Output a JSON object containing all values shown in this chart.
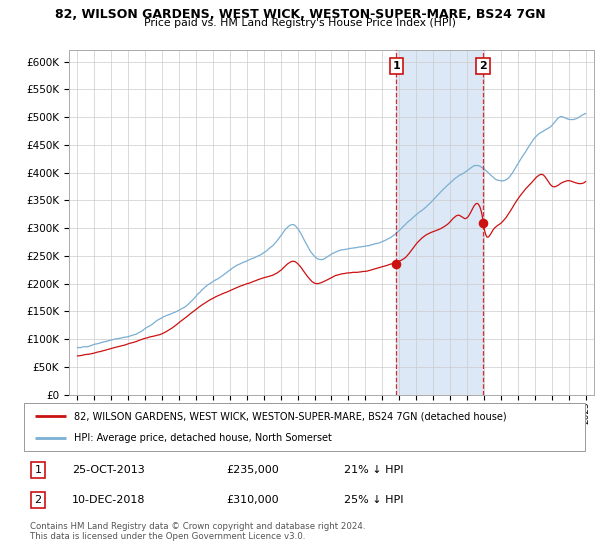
{
  "title": "82, WILSON GARDENS, WEST WICK, WESTON-SUPER-MARE, BS24 7GN",
  "subtitle": "Price paid vs. HM Land Registry's House Price Index (HPI)",
  "hpi_color": "#7bafd4",
  "price_color": "#cc1111",
  "plot_bg": "#ffffff",
  "fig_bg": "#ffffff",
  "grid_color": "#cccccc",
  "shaded_color": "#dce8f5",
  "ylim": [
    0,
    620000
  ],
  "yticks": [
    0,
    50000,
    100000,
    150000,
    200000,
    250000,
    300000,
    350000,
    400000,
    450000,
    500000,
    550000,
    600000
  ],
  "xlim": [
    1994.5,
    2025.5
  ],
  "x_start_year": 1995,
  "x_end_year": 2025,
  "transaction1": {
    "date": "25-OCT-2013",
    "price": 235000,
    "label": "1",
    "x_year": 2013.82
  },
  "transaction2": {
    "date": "10-DEC-2018",
    "price": 310000,
    "label": "2",
    "x_year": 2018.95
  },
  "shaded_region": [
    2013.82,
    2018.95
  ],
  "legend_line1": "82, WILSON GARDENS, WEST WICK, WESTON-SUPER-MARE, BS24 7GN (detached house)",
  "legend_line2": "HPI: Average price, detached house, North Somerset",
  "table_row1": [
    "1",
    "25-OCT-2013",
    "£235,000",
    "21% ↓ HPI"
  ],
  "table_row2": [
    "2",
    "10-DEC-2018",
    "£310,000",
    "25% ↓ HPI"
  ],
  "footnote": "Contains HM Land Registry data © Crown copyright and database right 2024.\nThis data is licensed under the Open Government Licence v3.0.",
  "hpi_keypoints_x": [
    1995.0,
    1996.0,
    1997.0,
    1998.5,
    2000.0,
    2001.5,
    2002.5,
    2003.5,
    2004.5,
    2005.5,
    2006.5,
    2007.0,
    2007.8,
    2008.5,
    2009.0,
    2009.5,
    2010.0,
    2010.5,
    2011.0,
    2012.0,
    2013.0,
    2013.82,
    2014.5,
    2015.5,
    2016.5,
    2017.5,
    2018.0,
    2018.5,
    2018.95,
    2019.5,
    2020.0,
    2020.5,
    2021.0,
    2021.5,
    2022.0,
    2022.5,
    2023.0,
    2023.5,
    2024.0,
    2024.5,
    2025.0
  ],
  "hpi_keypoints_y": [
    85000,
    90000,
    98000,
    110000,
    140000,
    165000,
    195000,
    215000,
    235000,
    248000,
    268000,
    288000,
    308000,
    275000,
    252000,
    248000,
    258000,
    265000,
    268000,
    272000,
    280000,
    295000,
    315000,
    340000,
    370000,
    395000,
    405000,
    415000,
    410000,
    395000,
    388000,
    395000,
    420000,
    445000,
    468000,
    480000,
    490000,
    505000,
    500000,
    502000,
    510000
  ],
  "price_keypoints_x": [
    1995.0,
    1996.0,
    1997.0,
    1998.0,
    1999.0,
    2000.0,
    2001.0,
    2002.0,
    2003.0,
    2004.0,
    2005.0,
    2006.0,
    2007.0,
    2007.8,
    2008.5,
    2009.0,
    2009.5,
    2010.0,
    2011.0,
    2012.0,
    2013.0,
    2013.82,
    2014.5,
    2015.0,
    2016.0,
    2017.0,
    2017.5,
    2018.0,
    2018.95,
    2019.0,
    2019.5,
    2020.0,
    2021.0,
    2022.0,
    2022.5,
    2023.0,
    2023.5,
    2024.0,
    2024.5,
    2025.0
  ],
  "price_keypoints_y": [
    70000,
    75000,
    82000,
    90000,
    100000,
    108000,
    128000,
    152000,
    172000,
    185000,
    198000,
    208000,
    222000,
    238000,
    215000,
    200000,
    202000,
    210000,
    218000,
    220000,
    228000,
    235000,
    248000,
    268000,
    290000,
    308000,
    320000,
    315000,
    310000,
    300000,
    292000,
    305000,
    348000,
    385000,
    392000,
    372000,
    375000,
    380000,
    375000,
    378000
  ]
}
